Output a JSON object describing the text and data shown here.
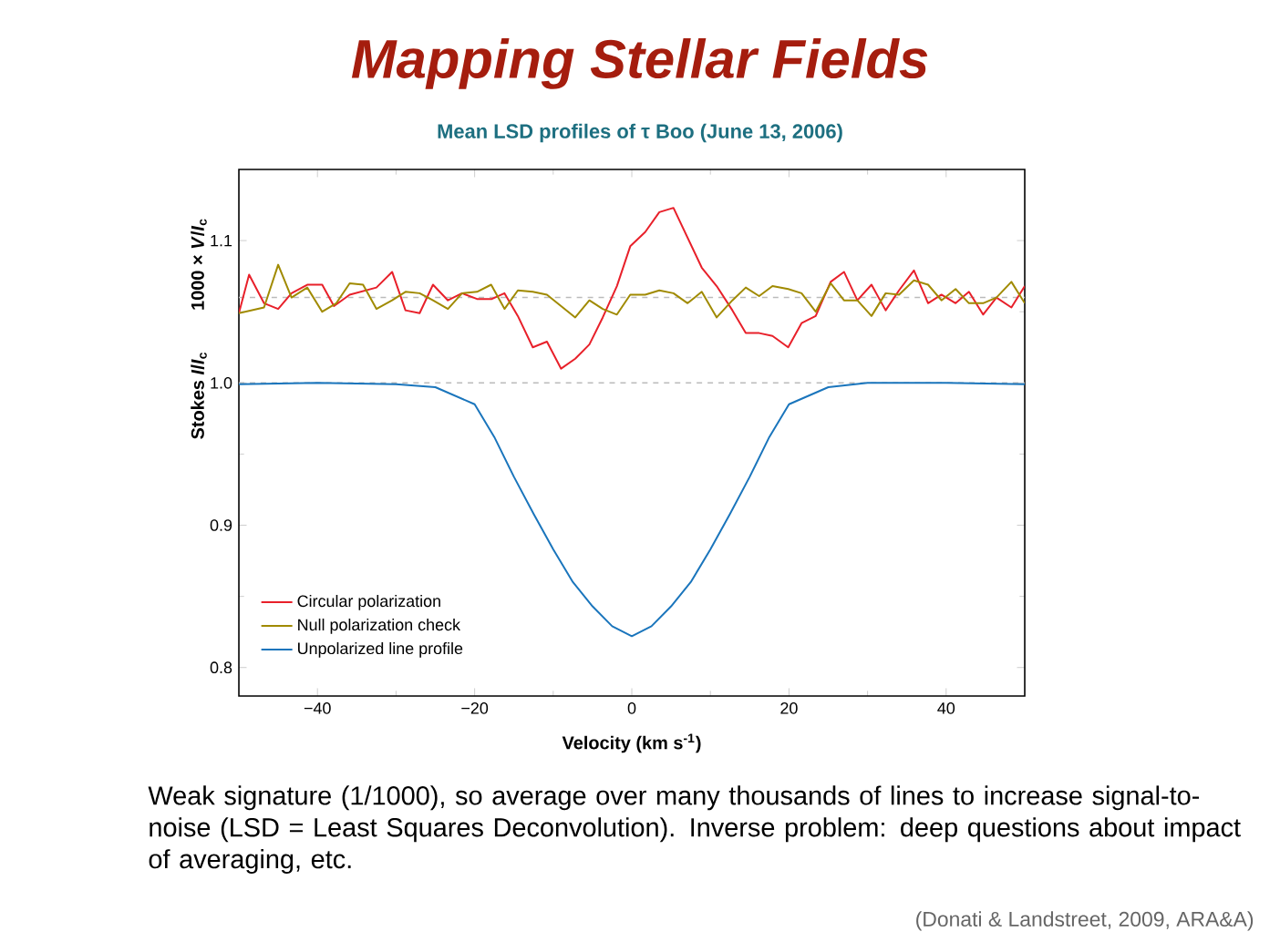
{
  "chart_data": {
    "type": "line",
    "title": "Mapping Stellar Fields",
    "subtitle": "Mean LSD profiles of τ Boo (June 13, 2006)",
    "xlabel": "Velocity (km s$^{-1}$)",
    "ylabel": "Stokes *I*/*I*$_{c}$",
    "annotations": [
      "1000 × *V*/*I*$_{c}$",
      "Weak signature (1/1000), so average over many thousands of lines to increase signal-to-noise (LSD = Least Squares Deconvolution). Inverse problem: deep questions about impact of averaging, etc.",
      "(Donati & Landstreet, 2009, ARA&A)"
    ],
    "xlim": [
      -50,
      50
    ],
    "ylim": [
      0.78,
      1.15
    ],
    "xticks": [
      {
        "value": -40,
        "label": "−40"
      },
      {
        "value": -20,
        "label": "−20"
      },
      0,
      20,
      40
    ],
    "yticks": [
      0.8,
      0.9,
      {
        "value": 1,
        "label": "1.0"
      },
      1.1
    ],
    "grid": false,
    "legend": "bottom left",
    "line_style": "solid",
    "marker": "none",
    "ref_lines": [
      {
        "axis": "y",
        "value": 1.06,
        "color": "#bbbbbb",
        "line_style": "dashed"
      },
      {
        "axis": "y",
        "value": 1.0,
        "color": "#bbbbbb",
        "line_style": "dashed"
      }
    ],
    "series": [
      {
        "name": "Circular polarization",
        "color": "#e8202a",
        "x": [
          -50,
          -48.7,
          -46.8,
          -45,
          -43.3,
          -41.3,
          -39.4,
          -37.9,
          -35.9,
          -32.5,
          -30.5,
          -28.8,
          -27,
          -25.3,
          -23.4,
          -21.6,
          -19.7,
          -17.8,
          -16.2,
          -14.5,
          -12.6,
          -10.8,
          -9,
          -7.2,
          -5.4,
          -3.7,
          -1.9,
          -0.2,
          1.7,
          3.5,
          5.3,
          7.1,
          8.9,
          10.8,
          12.8,
          14.5,
          16.2,
          17.9,
          19.9,
          21.6,
          23.4,
          25.3,
          27,
          28.7,
          30.5,
          32.3,
          34,
          35.9,
          37.7,
          39.4,
          41.2,
          42.9,
          44.7,
          46.4,
          48.3,
          50
        ],
        "values": [
          1.049,
          1.076,
          1.056,
          1.052,
          1.063,
          1.069,
          1.069,
          1.054,
          1.062,
          1.067,
          1.078,
          1.051,
          1.049,
          1.069,
          1.058,
          1.063,
          1.059,
          1.059,
          1.063,
          1.047,
          1.025,
          1.029,
          1.01,
          1.017,
          1.027,
          1.046,
          1.068,
          1.096,
          1.106,
          1.12,
          1.123,
          1.102,
          1.081,
          1.068,
          1.051,
          1.035,
          1.035,
          1.033,
          1.025,
          1.042,
          1.047,
          1.071,
          1.078,
          1.058,
          1.069,
          1.051,
          1.065,
          1.079,
          1.056,
          1.062,
          1.056,
          1.064,
          1.048,
          1.06,
          1.053,
          1.068
        ]
      },
      {
        "name": "Null polarization check",
        "color": "#a08a00",
        "x": [
          -50,
          -46.8,
          -45,
          -43.3,
          -41.3,
          -39.4,
          -37.6,
          -35.9,
          -34.2,
          -32.5,
          -30.5,
          -28.8,
          -27,
          -25.3,
          -23.4,
          -21.6,
          -19.7,
          -17.9,
          -16.2,
          -14.5,
          -12.6,
          -10.8,
          -9,
          -7.2,
          -5.4,
          -3.7,
          -1.9,
          -0.2,
          1.7,
          3.5,
          5.3,
          7.1,
          8.9,
          10.8,
          12.8,
          14.5,
          16.2,
          17.9,
          19.9,
          21.6,
          23.4,
          25.3,
          27,
          28.7,
          30.5,
          32.3,
          34,
          35.9,
          37.7,
          39.4,
          41.2,
          42.9,
          44.7,
          46.4,
          48.3,
          50
        ],
        "values": [
          1.049,
          1.053,
          1.083,
          1.06,
          1.067,
          1.05,
          1.056,
          1.07,
          1.069,
          1.052,
          1.058,
          1.064,
          1.063,
          1.058,
          1.052,
          1.063,
          1.064,
          1.069,
          1.052,
          1.065,
          1.064,
          1.062,
          1.054,
          1.046,
          1.058,
          1.052,
          1.048,
          1.062,
          1.062,
          1.065,
          1.063,
          1.056,
          1.064,
          1.046,
          1.058,
          1.067,
          1.061,
          1.068,
          1.066,
          1.063,
          1.05,
          1.07,
          1.058,
          1.058,
          1.047,
          1.063,
          1.062,
          1.072,
          1.069,
          1.058,
          1.066,
          1.056,
          1.056,
          1.06,
          1.071,
          1.056
        ]
      },
      {
        "name": "Unpolarized line profile",
        "color": "#1a75bc",
        "x": [
          -50,
          -40,
          -30,
          -25,
          -20,
          -17.5,
          -15,
          -12.5,
          -10,
          -7.5,
          -5,
          -2.5,
          0,
          2.5,
          5,
          7.5,
          10,
          12.5,
          15,
          17.5,
          20,
          25,
          30,
          40,
          50
        ],
        "values": [
          0.999,
          1.0,
          0.999,
          0.997,
          0.985,
          0.962,
          0.934,
          0.908,
          0.883,
          0.86,
          0.843,
          0.829,
          0.822,
          0.829,
          0.843,
          0.86,
          0.883,
          0.908,
          0.934,
          0.962,
          0.985,
          0.997,
          1.0,
          1.0,
          0.999
        ]
      }
    ]
  }
}
